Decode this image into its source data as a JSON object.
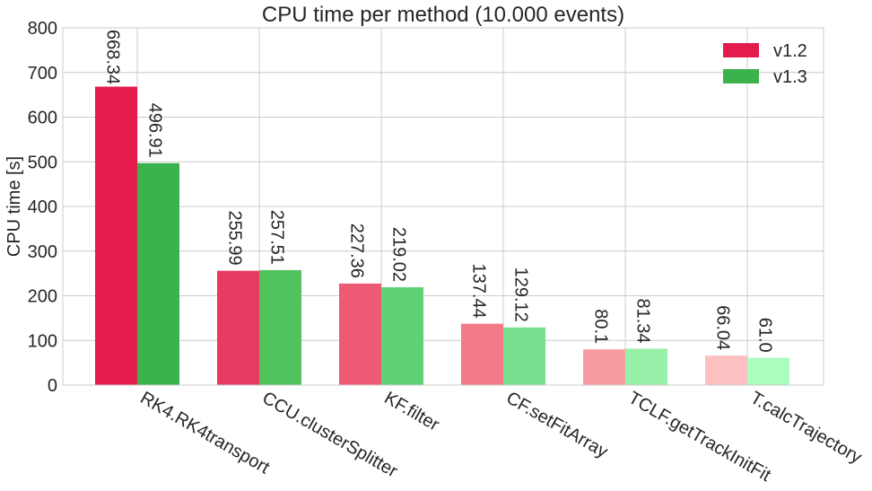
{
  "chart_data": {
    "type": "bar",
    "title": "CPU time per method (10.000 events)",
    "xlabel": "",
    "ylabel": "CPU time [s]",
    "ylim": [
      0,
      800
    ],
    "yticks": [
      0,
      100,
      200,
      300,
      400,
      500,
      600,
      700,
      800
    ],
    "grid": true,
    "legend_position": "top-right",
    "categories": [
      "RK4.RK4transport",
      "CCU.clusterSplitter",
      "KF.filter",
      "CF.setFitArray",
      "TCLF.getTrackInitFit",
      "T.calcTrajectory"
    ],
    "series": [
      {
        "name": "v1.2",
        "values": [
          668.34,
          255.99,
          227.36,
          137.44,
          80.1,
          66.04
        ],
        "labels": [
          "668.34",
          "255.99",
          "227.36",
          "137.44",
          "80.1",
          "66.04"
        ],
        "colors": [
          "#e51b4e",
          "#e93a63",
          "#ee5a73",
          "#f37b87",
          "#f79da1",
          "#fbc0bf"
        ],
        "legend_color": "#e51b4e"
      },
      {
        "name": "v1.3",
        "values": [
          496.91,
          257.51,
          219.02,
          129.12,
          81.34,
          61.0
        ],
        "labels": [
          "496.91",
          "257.51",
          "219.02",
          "129.12",
          "81.34",
          "61.0"
        ],
        "colors": [
          "#3bb24b",
          "#50c35d",
          "#5fd273",
          "#78df8f",
          "#96f0a8",
          "#a9fdbd"
        ],
        "legend_color": "#3bb24b"
      }
    ]
  }
}
